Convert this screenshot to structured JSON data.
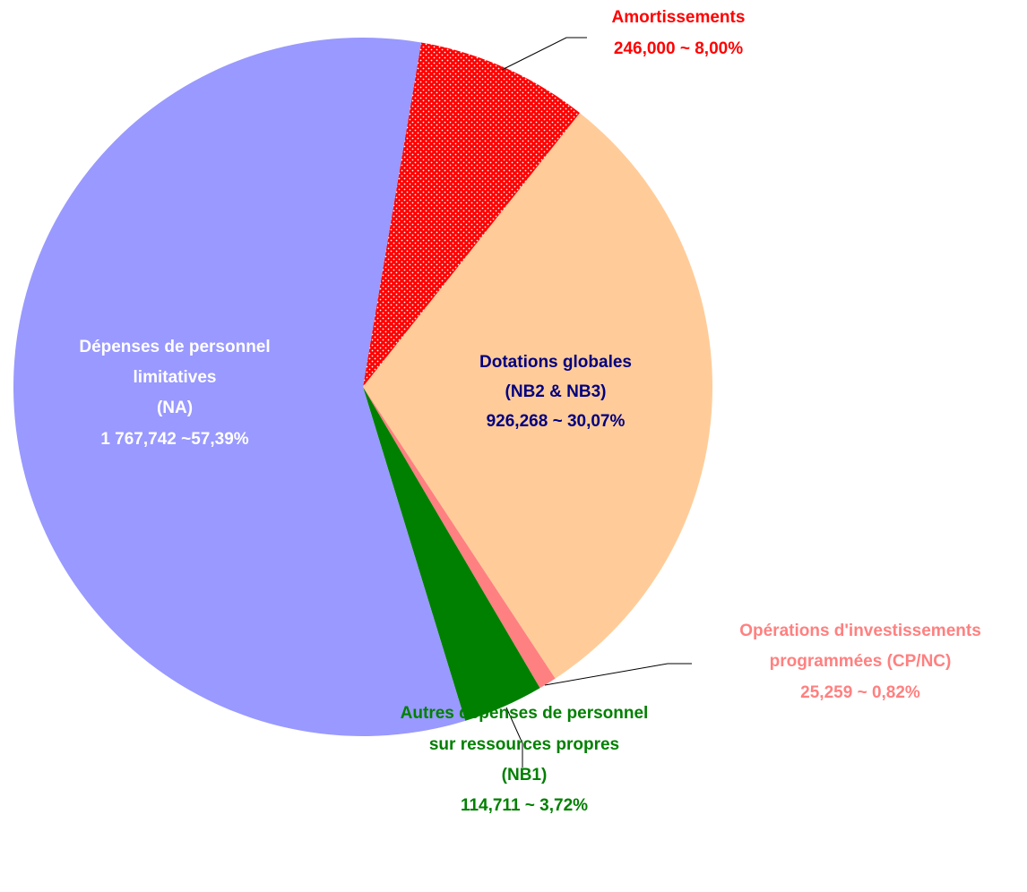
{
  "chart_data": {
    "type": "pie",
    "categories": [
      [
        "Amortissements"
      ],
      [
        "Dotations globales",
        "(NB2 & NB3)"
      ],
      [
        "Opérations d'investissements",
        "programmées (CP/NC)"
      ],
      [
        "Autres dépenses de personnel",
        "sur ressources propres",
        "(NB1)"
      ],
      [
        "Dépenses de personnel",
        "limitatives",
        "(NA)"
      ]
    ],
    "values": [
      246.0,
      926.268,
      25.259,
      114.711,
      1767.742
    ],
    "value_labels": [
      "246,000 ~ 8,00%",
      "926,268 ~ 30,07%",
      "25,259 ~ 0,82%",
      "114,711 ~ 3,72%",
      "1 767,742 ~57,39%"
    ],
    "colors": [
      "#ff0000",
      "#ffcc99",
      "#ff8080",
      "#008000",
      "#9999ff"
    ],
    "label_colors": [
      "#ff0000",
      "#000080",
      "#ff8080",
      "#008000",
      "#ffffff"
    ]
  }
}
